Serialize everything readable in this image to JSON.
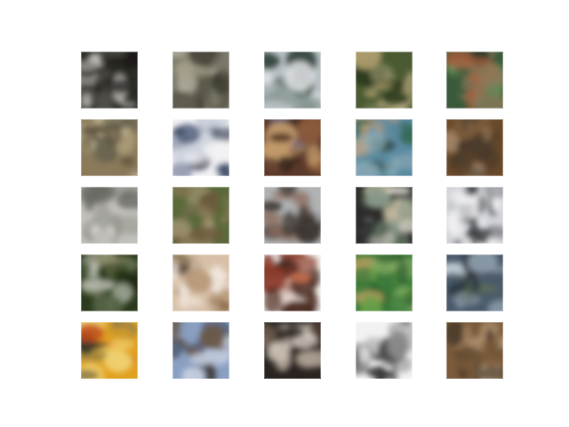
{
  "figure": {
    "background": "#ffffff",
    "grid": {
      "rows": 5,
      "columns": 5
    },
    "tiles": [
      {
        "name": "tile-r1-c1",
        "palette": [
          "#2c2a26",
          "#5a5a52",
          "#8a8c88",
          "#c9c6c0",
          "#1a1815"
        ]
      },
      {
        "name": "tile-r1-c2",
        "palette": [
          "#7a7868",
          "#a39d8a",
          "#5c5a4c",
          "#cfcab9",
          "#3d3b30"
        ]
      },
      {
        "name": "tile-r1-c3",
        "palette": [
          "#b8c0c4",
          "#8a9a96",
          "#5a6c62",
          "#e4e6e8",
          "#3a4a44"
        ]
      },
      {
        "name": "tile-r1-c4",
        "palette": [
          "#4a5a32",
          "#8a8a62",
          "#c2b48a",
          "#2c3a1c",
          "#a89a6a"
        ]
      },
      {
        "name": "tile-r1-c5",
        "palette": [
          "#3a5a3a",
          "#6a8a5a",
          "#8a7a5a",
          "#b05a3a",
          "#2a3a2a"
        ]
      },
      {
        "name": "tile-r2-c1",
        "palette": [
          "#8a7a5a",
          "#b0a07a",
          "#5a4e3a",
          "#d2c6a6",
          "#6a6650"
        ]
      },
      {
        "name": "tile-r2-c2",
        "palette": [
          "#f2f2f4",
          "#3a4a6a",
          "#8a92a8",
          "#1c243a",
          "#cfd4de"
        ]
      },
      {
        "name": "tile-r2-c3",
        "palette": [
          "#5a3a2a",
          "#8a5a3a",
          "#c29a6a",
          "#2a1a14",
          "#6a6a8a"
        ]
      },
      {
        "name": "tile-r2-c4",
        "palette": [
          "#5a8aa0",
          "#3a6a5a",
          "#c2a07a",
          "#2a3a2a",
          "#8aaab6"
        ]
      },
      {
        "name": "tile-r2-c5",
        "palette": [
          "#6a4a2a",
          "#9a7a5a",
          "#4a3a2a",
          "#c2a88a",
          "#7a5a3a"
        ]
      },
      {
        "name": "tile-r3-c1",
        "palette": [
          "#c2c0ba",
          "#9a9a94",
          "#6a6a64",
          "#e2e0da",
          "#4a4a46"
        ]
      },
      {
        "name": "tile-r3-c2",
        "palette": [
          "#5a6a3a",
          "#8a7a5a",
          "#3a4a2a",
          "#a89a7a",
          "#6a5a3a"
        ]
      },
      {
        "name": "tile-r3-c3",
        "palette": [
          "#b0b2b4",
          "#f0f2f4",
          "#5a4e46",
          "#8a6a5a",
          "#3a3430"
        ]
      },
      {
        "name": "tile-r3-c4",
        "palette": [
          "#2a2a2a",
          "#8a9a8a",
          "#c2b89a",
          "#5a6a5a",
          "#e0dcd0"
        ]
      },
      {
        "name": "tile-r3-c5",
        "palette": [
          "#d2d4d8",
          "#8a8c90",
          "#3a3c40",
          "#f2f2f4",
          "#5a5c60"
        ]
      },
      {
        "name": "tile-r4-c1",
        "palette": [
          "#2a3a1a",
          "#5a6a4a",
          "#8a8a6a",
          "#c2c6ba",
          "#1a2412"
        ]
      },
      {
        "name": "tile-r4-c2",
        "palette": [
          "#d8c0a8",
          "#8a6a4a",
          "#b89a7a",
          "#5a4a3a",
          "#f0e6dc"
        ]
      },
      {
        "name": "tile-r4-c3",
        "palette": [
          "#f4f2f0",
          "#8a3a2a",
          "#c26a4a",
          "#4a2a20",
          "#d8c2b4"
        ]
      },
      {
        "name": "tile-r4-c4",
        "palette": [
          "#3a7a3a",
          "#6aa04a",
          "#2a5a2a",
          "#a89a5a",
          "#8ab06a"
        ]
      },
      {
        "name": "tile-r4-c5",
        "palette": [
          "#4a5a6a",
          "#8a9aa8",
          "#2a3440",
          "#c2ccd6",
          "#5a6a5a"
        ]
      },
      {
        "name": "tile-r5-c1",
        "palette": [
          "#e0a020",
          "#c24a1a",
          "#3a3a2a",
          "#8a7a4a",
          "#f0d070"
        ]
      },
      {
        "name": "tile-r5-c2",
        "palette": [
          "#8aa0c2",
          "#5a6a8a",
          "#3a3a3a",
          "#c2ccde",
          "#6a5a4a"
        ]
      },
      {
        "name": "tile-r5-c3",
        "palette": [
          "#2a2420",
          "#c2b6a8",
          "#6a5a4a",
          "#e8e0d4",
          "#4a3a30"
        ]
      },
      {
        "name": "tile-r5-c4",
        "palette": [
          "#f2f2f2",
          "#3a3a3a",
          "#8a8a8a",
          "#c2c2c2",
          "#5a5a5a"
        ]
      },
      {
        "name": "tile-r5-c5",
        "palette": [
          "#7a5a3a",
          "#a88a6a",
          "#4a3a2a",
          "#c2aa8a",
          "#5a4a3a"
        ]
      }
    ]
  }
}
